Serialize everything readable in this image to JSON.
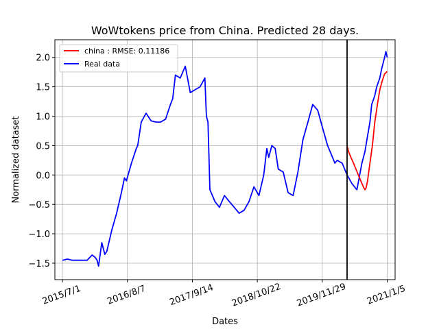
{
  "chart_data": {
    "type": "line",
    "title": "WoWtokens price from China. Predicted 28 days.",
    "xlabel": "Dates",
    "ylabel": "Normalized dataset",
    "x_tick_labels": [
      "2015/7/1",
      "2016/8/7",
      "2017/9/14",
      "2018/10/22",
      "2019/11/29",
      "2021/1/5"
    ],
    "y_ticks": [
      -1.5,
      -1.0,
      -0.5,
      0.0,
      0.5,
      1.0,
      1.5,
      2.0
    ],
    "y_tick_labels": [
      "−1.5",
      "−1.0",
      "−0.5",
      "0.0",
      "0.5",
      "1.0",
      "1.5",
      "2.0"
    ],
    "x_range": [
      "2015-05-15",
      "2021-02-23"
    ],
    "ylim": [
      -1.78,
      2.3
    ],
    "grid": true,
    "legend_position": "top-left",
    "prediction_start": "2020-05-01",
    "series": [
      {
        "name": "china : RMSE: 0.11186",
        "color": "#ff0000",
        "x": [
          "2020-05-01",
          "2020-05-10",
          "2020-05-25",
          "2020-06-10",
          "2020-06-25",
          "2020-07-10",
          "2020-07-25",
          "2020-08-10",
          "2020-08-20",
          "2020-08-27",
          "2020-09-05",
          "2020-09-20",
          "2020-10-05",
          "2020-10-20",
          "2020-11-05",
          "2020-11-20",
          "2020-12-05",
          "2020-12-20",
          "2021-01-05"
        ],
        "y": [
          0.5,
          0.4,
          0.3,
          0.2,
          0.1,
          0.0,
          -0.1,
          -0.2,
          -0.25,
          -0.22,
          -0.1,
          0.2,
          0.5,
          0.9,
          1.2,
          1.45,
          1.6,
          1.72,
          1.76
        ]
      },
      {
        "name": "Real data",
        "color": "#0000ff",
        "x": [
          "2015-07-01",
          "2015-08-01",
          "2015-09-01",
          "2015-10-01",
          "2015-11-01",
          "2015-12-01",
          "2016-01-01",
          "2016-01-20",
          "2016-02-01",
          "2016-02-10",
          "2016-03-01",
          "2016-03-20",
          "2016-04-01",
          "2016-05-01",
          "2016-06-01",
          "2016-07-01",
          "2016-07-20",
          "2016-08-01",
          "2016-09-01",
          "2016-10-01",
          "2016-10-10",
          "2016-11-01",
          "2016-12-01",
          "2017-01-01",
          "2017-02-01",
          "2017-03-01",
          "2017-04-01",
          "2017-05-01",
          "2017-05-15",
          "2017-06-01",
          "2017-07-01",
          "2017-08-01",
          "2017-09-01",
          "2017-10-01",
          "2017-11-01",
          "2017-12-01",
          "2017-12-10",
          "2017-12-20",
          "2018-01-01",
          "2018-02-01",
          "2018-03-01",
          "2018-04-01",
          "2018-05-01",
          "2018-06-01",
          "2018-07-01",
          "2018-08-01",
          "2018-09-01",
          "2018-10-01",
          "2018-11-01",
          "2018-12-01",
          "2018-12-20",
          "2019-01-01",
          "2019-01-20",
          "2019-02-10",
          "2019-03-01",
          "2019-04-01",
          "2019-05-01",
          "2019-06-01",
          "2019-07-01",
          "2019-08-01",
          "2019-09-01",
          "2019-10-01",
          "2019-11-01",
          "2019-12-01",
          "2020-01-01",
          "2020-02-01",
          "2020-02-15",
          "2020-03-01",
          "2020-04-01",
          "2020-05-01",
          "2020-06-01",
          "2020-07-01",
          "2020-08-01",
          "2020-08-20",
          "2020-09-01",
          "2020-09-20",
          "2020-10-01",
          "2020-10-20",
          "2020-11-01",
          "2020-11-20",
          "2020-12-01",
          "2020-12-20",
          "2020-12-28",
          "2021-01-05"
        ],
        "y": [
          -1.45,
          -1.43,
          -1.45,
          -1.45,
          -1.45,
          -1.45,
          -1.36,
          -1.4,
          -1.45,
          -1.55,
          -1.15,
          -1.35,
          -1.3,
          -0.95,
          -0.65,
          -0.3,
          -0.05,
          -0.1,
          0.2,
          0.45,
          0.5,
          0.9,
          1.05,
          0.92,
          0.9,
          0.9,
          0.95,
          1.2,
          1.3,
          1.7,
          1.65,
          1.85,
          1.4,
          1.45,
          1.5,
          1.65,
          1.0,
          0.9,
          -0.25,
          -0.45,
          -0.55,
          -0.35,
          -0.45,
          -0.55,
          -0.65,
          -0.6,
          -0.45,
          -0.2,
          -0.35,
          0.0,
          0.45,
          0.3,
          0.5,
          0.45,
          0.1,
          0.05,
          -0.3,
          -0.35,
          0.05,
          0.6,
          0.9,
          1.2,
          1.1,
          0.8,
          0.5,
          0.3,
          0.2,
          0.25,
          0.2,
          0.0,
          -0.15,
          -0.25,
          0.2,
          0.4,
          0.6,
          0.9,
          1.2,
          1.35,
          1.5,
          1.65,
          1.8,
          2.0,
          2.1,
          2.0
        ]
      }
    ]
  }
}
